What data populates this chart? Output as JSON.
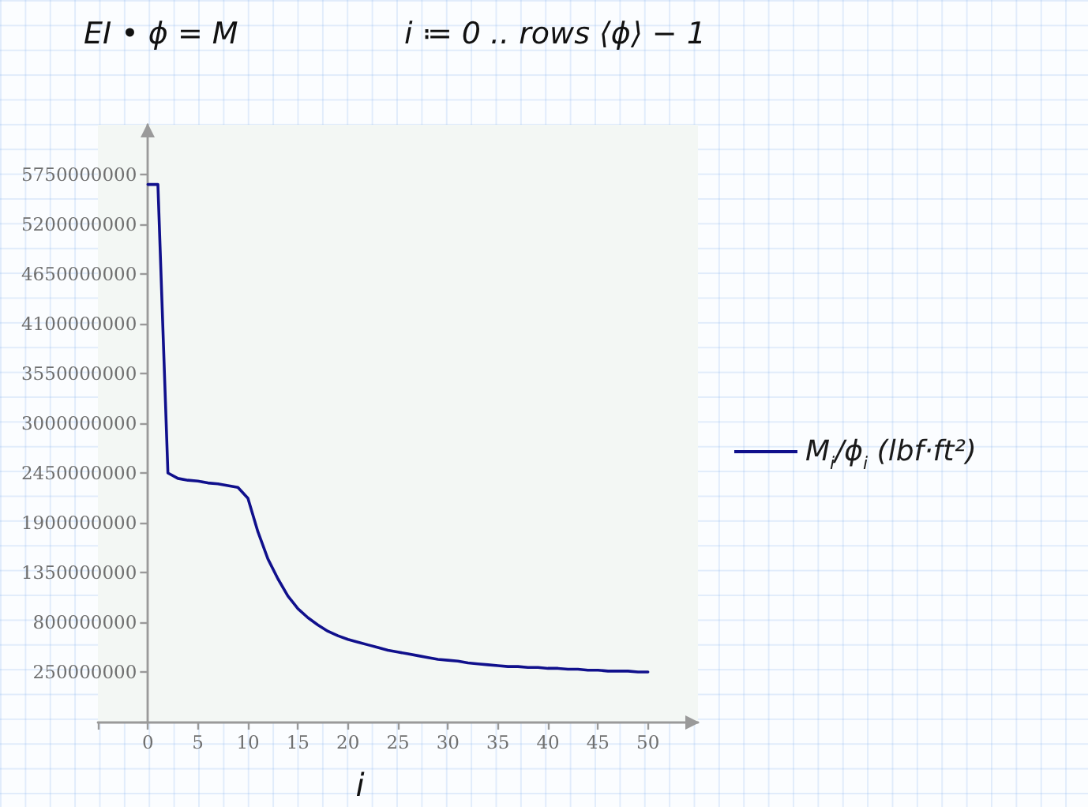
{
  "chart_data": {
    "type": "line",
    "annotations": [
      "EI • ϕ = M",
      "i ≔ 0 .. rows ⟨ϕ⟩ − 1"
    ],
    "xlabel": "i",
    "x": [
      0,
      1,
      2,
      3,
      4,
      5,
      6,
      7,
      8,
      9,
      10,
      11,
      12,
      13,
      14,
      15,
      16,
      17,
      18,
      19,
      20,
      21,
      22,
      23,
      24,
      25,
      26,
      27,
      28,
      29,
      30,
      31,
      32,
      33,
      34,
      35,
      36,
      37,
      38,
      39,
      40,
      41,
      42,
      43,
      44,
      45,
      46,
      47,
      48,
      49,
      50
    ],
    "series": [
      {
        "name": "M$_{i}$/ϕ$_{i}$ (lbf·ft²)",
        "color": "#10108c",
        "values": [
          5640000000,
          5640000000,
          2450000000,
          2390000000,
          2370000000,
          2360000000,
          2340000000,
          2330000000,
          2310000000,
          2290000000,
          2170000000,
          1800000000,
          1500000000,
          1280000000,
          1090000000,
          950000000,
          850000000,
          770000000,
          700000000,
          650000000,
          610000000,
          580000000,
          550000000,
          520000000,
          490000000,
          470000000,
          450000000,
          430000000,
          410000000,
          390000000,
          380000000,
          370000000,
          350000000,
          340000000,
          330000000,
          320000000,
          310000000,
          310000000,
          300000000,
          300000000,
          290000000,
          290000000,
          280000000,
          280000000,
          270000000,
          270000000,
          260000000,
          260000000,
          260000000,
          250000000,
          250000000
        ]
      }
    ],
    "xlim": [
      -5,
      55
    ],
    "xticks": [
      {
        "value": -5,
        "label": null
      },
      0,
      5,
      10,
      15,
      20,
      25,
      30,
      35,
      40,
      45,
      50
    ],
    "ylim": [
      -300000000,
      6300000000
    ],
    "yticks": [
      {
        "value": -300000000,
        "label": null
      },
      250000000,
      800000000,
      1350000000,
      1900000000,
      2450000000,
      3000000000,
      3550000000,
      4100000000,
      4650000000,
      5200000000,
      5750000000
    ],
    "legend": "right",
    "marker": "none",
    "line_style": "solid"
  }
}
